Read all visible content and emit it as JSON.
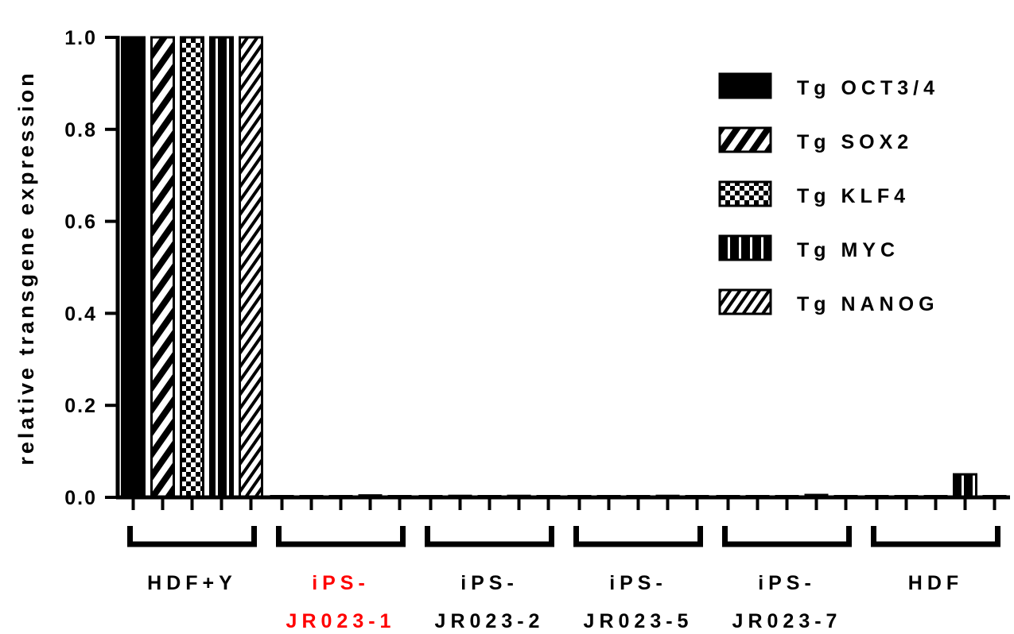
{
  "chart_data": {
    "type": "bar",
    "ylabel": "relative transgene expression",
    "ylim": [
      0,
      1.0
    ],
    "yticks": [
      "0.0",
      "0.2",
      "0.4",
      "0.6",
      "0.8",
      "1.0"
    ],
    "legend_position": "top-right",
    "categories": [
      {
        "lines": [
          "HDF+Y"
        ],
        "color": "#000000"
      },
      {
        "lines": [
          "iPS-",
          "JR023-1"
        ],
        "color": "#ff0000"
      },
      {
        "lines": [
          "iPS-",
          "JR023-2"
        ],
        "color": "#000000"
      },
      {
        "lines": [
          "iPS-",
          "JR023-5"
        ],
        "color": "#000000"
      },
      {
        "lines": [
          "iPS-",
          "JR023-7"
        ],
        "color": "#000000"
      },
      {
        "lines": [
          "HDF"
        ],
        "color": "#000000"
      }
    ],
    "series": [
      {
        "name": "Tg OCT3/4",
        "pattern": "solid",
        "values": [
          1.0,
          0.003,
          0.002,
          0.003,
          0.002,
          0.002
        ]
      },
      {
        "name": "Tg SOX2",
        "pattern": "diag-right",
        "values": [
          1.0,
          0.002,
          0.004,
          0.002,
          0.002,
          0.003
        ]
      },
      {
        "name": "Tg KLF4",
        "pattern": "checker",
        "values": [
          1.0,
          0.002,
          0.002,
          0.002,
          0.002,
          0.002
        ]
      },
      {
        "name": "Tg MYC",
        "pattern": "vertical",
        "values": [
          1.0,
          0.005,
          0.004,
          0.004,
          0.006,
          0.05
        ]
      },
      {
        "name": "Tg NANOG",
        "pattern": "diag-left",
        "values": [
          1.0,
          0.002,
          0.002,
          0.002,
          0.003,
          0.003
        ]
      }
    ]
  }
}
